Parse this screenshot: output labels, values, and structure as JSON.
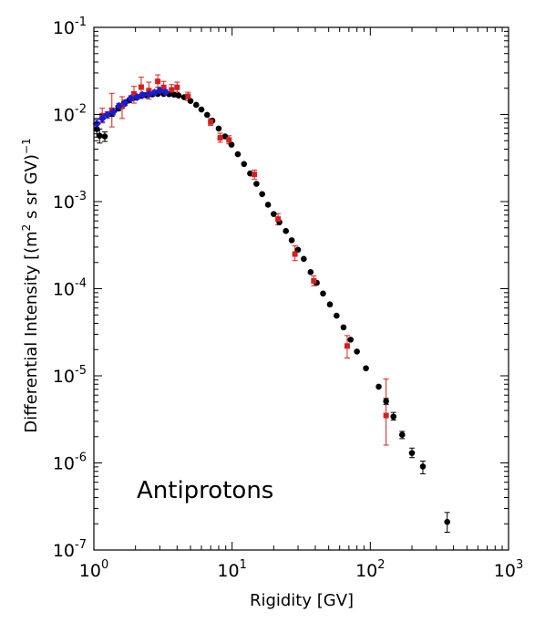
{
  "chart_data": {
    "type": "scatter",
    "xlabel": "Rigidity [GV]",
    "ylabel_main": "Differential Intensity [(m",
    "ylabel_sup2": "2",
    "ylabel_mid": " s sr GV)",
    "ylabel_sup1": "−1",
    "annotation": "Antiprotons",
    "x_scale": "log",
    "y_scale": "log",
    "xlim": [
      1,
      1000
    ],
    "ylim": [
      1e-07,
      0.1
    ],
    "x_ticks": [
      {
        "value": 1,
        "base": "10",
        "exp": "0"
      },
      {
        "value": 10,
        "base": "10",
        "exp": "1"
      },
      {
        "value": 100,
        "base": "10",
        "exp": "2"
      },
      {
        "value": 1000,
        "base": "10",
        "exp": "3"
      }
    ],
    "y_ticks": [
      {
        "value": 1e-07,
        "base": "10",
        "exp": "-7"
      },
      {
        "value": 1e-06,
        "base": "10",
        "exp": "-6"
      },
      {
        "value": 1e-05,
        "base": "10",
        "exp": "-5"
      },
      {
        "value": 0.0001,
        "base": "10",
        "exp": "-4"
      },
      {
        "value": 0.001,
        "base": "10",
        "exp": "-3"
      },
      {
        "value": 0.01,
        "base": "10",
        "exp": "-2"
      },
      {
        "value": 0.1,
        "base": "10",
        "exp": "-1"
      }
    ],
    "grid": false,
    "colors": {
      "black_series": "#000000",
      "red_series": "#d42020",
      "blue_series": "#1c1ccc"
    },
    "series": [
      {
        "marker": "circle",
        "color": "#000000",
        "points": [
          {
            "x": 1.05,
            "y": 0.0068,
            "lo": 0.0055,
            "hi": 0.0082
          },
          {
            "x": 1.1,
            "y": 0.0057,
            "lo": 0.0047,
            "hi": 0.0068
          },
          {
            "x": 1.2,
            "y": 0.0056,
            "lo": 0.0049,
            "hi": 0.0063
          },
          {
            "x": 1.35,
            "y": 0.0102,
            "lo": 0.0095,
            "hi": 0.011
          },
          {
            "x": 1.5,
            "y": 0.0117,
            "lo": 0.011,
            "hi": 0.0124
          },
          {
            "x": 1.65,
            "y": 0.0133,
            "lo": 0.0125,
            "hi": 0.0141
          },
          {
            "x": 1.8,
            "y": 0.0145,
            "lo": 0.0137,
            "hi": 0.0153
          },
          {
            "x": 2.0,
            "y": 0.0156,
            "lo": 0.0148,
            "hi": 0.0164
          },
          {
            "x": 2.2,
            "y": 0.0163
          },
          {
            "x": 2.4,
            "y": 0.0166
          },
          {
            "x": 2.65,
            "y": 0.017
          },
          {
            "x": 2.9,
            "y": 0.0172
          },
          {
            "x": 3.2,
            "y": 0.0172
          },
          {
            "x": 3.5,
            "y": 0.0171
          },
          {
            "x": 3.8,
            "y": 0.0169
          },
          {
            "x": 4.1,
            "y": 0.0165
          },
          {
            "x": 4.5,
            "y": 0.0158
          },
          {
            "x": 5.0,
            "y": 0.0143
          },
          {
            "x": 5.5,
            "y": 0.0129
          },
          {
            "x": 6.0,
            "y": 0.0114
          },
          {
            "x": 6.6,
            "y": 0.0099
          },
          {
            "x": 7.2,
            "y": 0.0085
          },
          {
            "x": 8.0,
            "y": 0.0069
          },
          {
            "x": 8.9,
            "y": 0.0056
          },
          {
            "x": 9.9,
            "y": 0.0045
          },
          {
            "x": 11.0,
            "y": 0.0035
          },
          {
            "x": 12.2,
            "y": 0.0027
          },
          {
            "x": 13.5,
            "y": 0.0021
          },
          {
            "x": 15.0,
            "y": 0.0016
          },
          {
            "x": 16.5,
            "y": 0.00122
          },
          {
            "x": 18.2,
            "y": 0.00092
          },
          {
            "x": 20.0,
            "y": 0.00072
          },
          {
            "x": 22.0,
            "y": 0.00058
          },
          {
            "x": 24.5,
            "y": 0.00046
          },
          {
            "x": 27.0,
            "y": 0.00036
          },
          {
            "x": 30.0,
            "y": 0.00028
          },
          {
            "x": 33.0,
            "y": 0.00022
          },
          {
            "x": 37.0,
            "y": 0.000155
          },
          {
            "x": 41.0,
            "y": 0.000117
          },
          {
            "x": 45.5,
            "y": 8.8e-05
          },
          {
            "x": 51.0,
            "y": 6.6e-05
          },
          {
            "x": 57.0,
            "y": 4.9e-05
          },
          {
            "x": 64.0,
            "y": 3.6e-05
          },
          {
            "x": 72.0,
            "y": 2.6e-05
          },
          {
            "x": 80.0,
            "y": 1.9e-05
          },
          {
            "x": 93.0,
            "y": 1.22e-05
          },
          {
            "x": 115.0,
            "y": 7.5e-06
          },
          {
            "x": 130.0,
            "y": 5.1e-06,
            "lo": 4.7e-06,
            "hi": 5.5e-06
          },
          {
            "x": 147.0,
            "y": 3.4e-06,
            "lo": 3.1e-06,
            "hi": 3.8e-06
          },
          {
            "x": 170.0,
            "y": 2.1e-06,
            "lo": 1.9e-06,
            "hi": 2.3e-06
          },
          {
            "x": 200.0,
            "y": 1.3e-06,
            "lo": 1.15e-06,
            "hi": 1.48e-06
          },
          {
            "x": 240.0,
            "y": 9.1e-07,
            "lo": 7.5e-07,
            "hi": 1.05e-06
          },
          {
            "x": 360.0,
            "y": 2.1e-07,
            "lo": 1.6e-07,
            "hi": 2.7e-07
          }
        ]
      },
      {
        "marker": "square",
        "color": "#d42020",
        "points": [
          {
            "x": 1.15,
            "y": 0.0097,
            "lo": 0.008,
            "hi": 0.0118
          },
          {
            "x": 1.35,
            "y": 0.0112,
            "lo": 0.0072,
            "hi": 0.0175
          },
          {
            "x": 1.6,
            "y": 0.0124,
            "lo": 0.009,
            "hi": 0.016
          },
          {
            "x": 1.95,
            "y": 0.0172,
            "lo": 0.0135,
            "hi": 0.021
          },
          {
            "x": 2.2,
            "y": 0.0206,
            "lo": 0.0155,
            "hi": 0.0268
          },
          {
            "x": 2.5,
            "y": 0.0188,
            "lo": 0.015,
            "hi": 0.0235
          },
          {
            "x": 2.9,
            "y": 0.024,
            "lo": 0.0205,
            "hi": 0.0285
          },
          {
            "x": 3.2,
            "y": 0.0205,
            "lo": 0.0175,
            "hi": 0.024
          },
          {
            "x": 3.65,
            "y": 0.0192,
            "lo": 0.0168,
            "hi": 0.022
          },
          {
            "x": 4.0,
            "y": 0.0205,
            "lo": 0.018,
            "hi": 0.0235
          },
          {
            "x": 4.8,
            "y": 0.0162,
            "lo": 0.0145,
            "hi": 0.018
          },
          {
            "x": 7.0,
            "y": 0.0082,
            "lo": 0.0075,
            "hi": 0.009
          },
          {
            "x": 8.2,
            "y": 0.0054,
            "lo": 0.0048,
            "hi": 0.0061
          },
          {
            "x": 9.5,
            "y": 0.0051,
            "lo": 0.0046,
            "hi": 0.0057
          },
          {
            "x": 14.5,
            "y": 0.00205,
            "lo": 0.0018,
            "hi": 0.0023
          },
          {
            "x": 21.5,
            "y": 0.00063,
            "lo": 0.00054,
            "hi": 0.00073
          },
          {
            "x": 28.5,
            "y": 0.00025,
            "lo": 0.00021,
            "hi": 0.00031
          },
          {
            "x": 39.0,
            "y": 0.000123,
            "lo": 0.000108,
            "hi": 0.00014
          },
          {
            "x": 68.0,
            "y": 2.2e-05,
            "lo": 1.6e-05,
            "hi": 2.9e-05
          },
          {
            "x": 130.0,
            "y": 3.5e-06,
            "lo": 1.6e-06,
            "hi": 9.2e-06
          }
        ]
      },
      {
        "marker": "diamond",
        "color": "#1c1ccc",
        "points": [
          {
            "x": 1.05,
            "y": 0.0078,
            "lo": 0.007,
            "hi": 0.0087
          },
          {
            "x": 1.15,
            "y": 0.009,
            "lo": 0.0082,
            "hi": 0.0098
          },
          {
            "x": 1.25,
            "y": 0.0099,
            "lo": 0.0091,
            "hi": 0.0107
          },
          {
            "x": 1.38,
            "y": 0.0107,
            "lo": 0.0099,
            "hi": 0.0116
          },
          {
            "x": 1.52,
            "y": 0.0125,
            "lo": 0.0116,
            "hi": 0.0134
          },
          {
            "x": 1.68,
            "y": 0.0136,
            "lo": 0.0127,
            "hi": 0.0146
          },
          {
            "x": 1.85,
            "y": 0.0153,
            "lo": 0.0143,
            "hi": 0.0164
          },
          {
            "x": 2.05,
            "y": 0.0158,
            "lo": 0.0148,
            "hi": 0.0168
          },
          {
            "x": 2.25,
            "y": 0.0167,
            "lo": 0.0157,
            "hi": 0.0178
          },
          {
            "x": 2.5,
            "y": 0.017,
            "lo": 0.016,
            "hi": 0.0181
          },
          {
            "x": 2.75,
            "y": 0.0178,
            "lo": 0.0167,
            "hi": 0.019
          },
          {
            "x": 3.0,
            "y": 0.0189,
            "lo": 0.0177,
            "hi": 0.0201
          },
          {
            "x": 3.3,
            "y": 0.018,
            "lo": 0.0168,
            "hi": 0.0192
          }
        ]
      }
    ]
  }
}
